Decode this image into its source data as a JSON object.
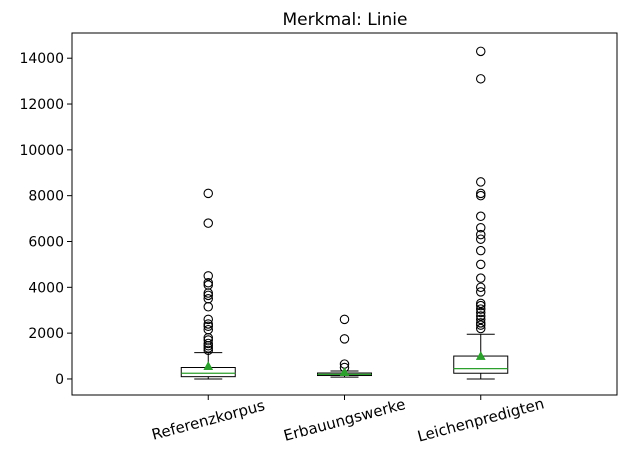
{
  "chart_data": {
    "type": "box",
    "title": "Merkmal: Linie",
    "xlabel": "",
    "ylabel": "",
    "ylim": [
      -700,
      15100
    ],
    "yticks": [
      0,
      2000,
      4000,
      6000,
      8000,
      10000,
      12000,
      14000
    ],
    "ytick_labels": [
      "0",
      "2000",
      "4000",
      "6000",
      "8000",
      "10000",
      "12000",
      "14000"
    ],
    "grid": false,
    "categories": [
      "Referenzkorpus",
      "Erbauungswerke",
      "Leichenpredigten"
    ],
    "series": [
      {
        "category": "Referenzkorpus",
        "whisker_low": 0,
        "q1": 100,
        "median": 250,
        "q3": 500,
        "whisker_high": 1150,
        "mean": 560,
        "outliers": [
          1250,
          1350,
          1450,
          1550,
          1700,
          1800,
          2150,
          2300,
          2400,
          2600,
          3150,
          3500,
          3650,
          3750,
          4100,
          4200,
          4500,
          6800,
          8100
        ]
      },
      {
        "category": "Erbauungswerke",
        "whisker_low": 80,
        "q1": 150,
        "median": 200,
        "q3": 260,
        "whisker_high": 350,
        "mean": 300,
        "outliers": [
          500,
          650,
          1750,
          2600
        ]
      },
      {
        "category": "Leichenpredigten",
        "whisker_low": 0,
        "q1": 250,
        "median": 450,
        "q3": 1000,
        "whisker_high": 1950,
        "mean": 1000,
        "outliers": [
          2200,
          2350,
          2450,
          2600,
          2750,
          2900,
          3050,
          3200,
          3300,
          3800,
          4000,
          4400,
          5000,
          5600,
          6100,
          6300,
          6600,
          7100,
          8000,
          8100,
          8600,
          13100,
          14300
        ]
      }
    ],
    "colors": {
      "box": "#000000",
      "median": "#2ca02c",
      "mean_marker": "#2ca02c",
      "outlier_edge": "#000000"
    }
  }
}
